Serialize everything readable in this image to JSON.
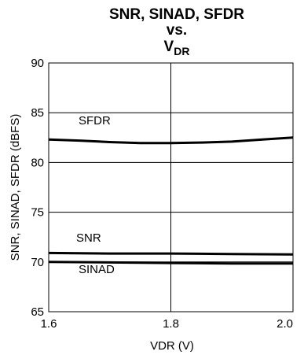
{
  "chart_data": {
    "type": "line",
    "title_lines": [
      "SNR, SINAD, SFDR",
      "vs."
    ],
    "title_line3_main": "V",
    "title_line3_sub": "DR",
    "xlabel": "VDR (V)",
    "ylabel": "SNR, SINAD, SFDR (dBFS)",
    "xlim": [
      1.6,
      2.0
    ],
    "ylim": [
      65,
      90
    ],
    "xticks": [
      1.6,
      1.8,
      2.0
    ],
    "xtick_labels": [
      "1.6",
      "1.8",
      "2.0"
    ],
    "yticks": [
      65,
      70,
      75,
      80,
      85,
      90
    ],
    "ytick_labels": [
      "65",
      "70",
      "75",
      "80",
      "85",
      "90"
    ],
    "grid": true,
    "legend": "inline",
    "series": [
      {
        "name": "SFDR",
        "x": [
          1.6,
          1.65,
          1.7,
          1.75,
          1.8,
          1.85,
          1.9,
          1.95,
          2.0
        ],
        "values": [
          82.3,
          82.2,
          82.05,
          81.95,
          81.95,
          82.0,
          82.1,
          82.3,
          82.5
        ]
      },
      {
        "name": "SNR",
        "x": [
          1.6,
          1.7,
          1.8,
          1.9,
          2.0
        ],
        "values": [
          70.9,
          70.85,
          70.85,
          70.8,
          70.75
        ]
      },
      {
        "name": "SINAD",
        "x": [
          1.6,
          1.7,
          1.8,
          1.9,
          2.0
        ],
        "values": [
          70.0,
          69.95,
          69.9,
          69.85,
          69.85
        ]
      }
    ]
  }
}
